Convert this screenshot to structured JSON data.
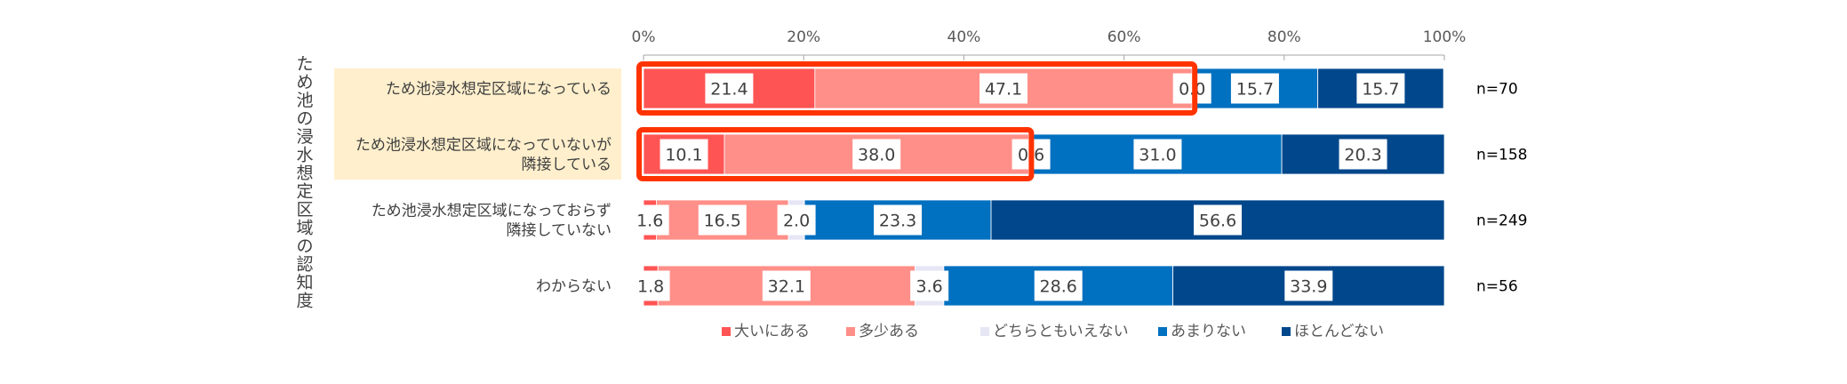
{
  "chart_data": {
    "type": "bar",
    "orientation": "horizontal-stacked-100",
    "title": "",
    "ylabel": "ため池の浸水想定区域の認知度",
    "xlabel": "",
    "xlim": [
      0,
      100
    ],
    "x_ticks": [
      "0%",
      "20%",
      "40%",
      "60%",
      "80%",
      "100%"
    ],
    "categories": [
      {
        "label_lines": [
          "ため池浸水想定区域になっている"
        ],
        "n": "n=70",
        "highlighted": true
      },
      {
        "label_lines": [
          "ため池浸水想定区域になっていないが",
          "隣接している"
        ],
        "n": "n=158",
        "highlighted": true
      },
      {
        "label_lines": [
          "ため池浸水想定区域になっておらず",
          "隣接していない"
        ],
        "n": "n=249",
        "highlighted": false
      },
      {
        "label_lines": [
          "わからない"
        ],
        "n": "n=56",
        "highlighted": false
      }
    ],
    "series": [
      {
        "name": "大いにある",
        "color": "#FF5454",
        "values": [
          21.4,
          10.1,
          1.6,
          1.8
        ],
        "labels": [
          "21.4",
          "10.1",
          "1.6",
          "1.8"
        ]
      },
      {
        "name": "多少ある",
        "color": "#FF8F88",
        "values": [
          47.1,
          38.0,
          16.5,
          32.1
        ],
        "labels": [
          "47.1",
          "38.0",
          "16.5",
          "32.1"
        ]
      },
      {
        "name": "どちらともいえない",
        "color": "#E6E6F5",
        "values": [
          0.0,
          0.6,
          2.0,
          3.6
        ],
        "labels": [
          "0.0",
          "0.6",
          "2.0",
          "3.6"
        ]
      },
      {
        "name": "あまりない",
        "color": "#0070C0",
        "values": [
          15.7,
          31.0,
          23.3,
          28.6
        ],
        "labels": [
          "15.7",
          "31.0",
          "23.3",
          "28.6"
        ]
      },
      {
        "name": "ほとんどない",
        "color": "#00478B",
        "values": [
          15.7,
          20.3,
          56.6,
          33.9
        ],
        "labels": [
          "15.7",
          "20.3",
          "56.6",
          "33.9"
        ]
      }
    ],
    "highlight": {
      "label_background": "#FFEFCC",
      "box_color": "#FF3300",
      "box_covers_series": [
        "大いにある",
        "多少ある"
      ]
    },
    "legend_position": "bottom",
    "grid": false
  }
}
